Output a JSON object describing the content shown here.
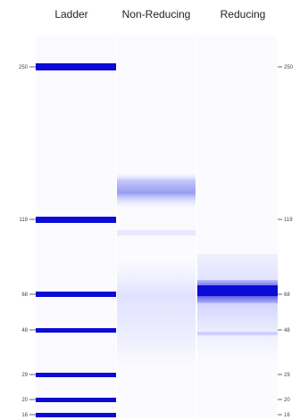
{
  "chart_data": {
    "type": "gel_electrophoresis",
    "title": "",
    "lanes": [
      "Ladder",
      "Non-Reducing",
      "Reducing"
    ],
    "ladder_markers_kda": [
      250,
      119,
      68,
      48,
      29,
      20,
      16
    ],
    "ladder_bands_kda": [
      250,
      119,
      68,
      48,
      29,
      20,
      16
    ],
    "non_reducing_bands": [
      {
        "kda": 150,
        "intensity": 0.55,
        "spread": "broad"
      },
      {
        "kda": 60,
        "intensity": 0.25,
        "spread": "smear"
      }
    ],
    "reducing_bands": [
      {
        "kda": 68,
        "intensity": 1.0,
        "spread": "sharp"
      },
      {
        "kda": 50,
        "intensity": 0.2,
        "spread": "smear"
      }
    ],
    "colors": {
      "band": "#0b0bd6",
      "smear": "#8c8cf0",
      "background": "#ffffff"
    }
  }
}
